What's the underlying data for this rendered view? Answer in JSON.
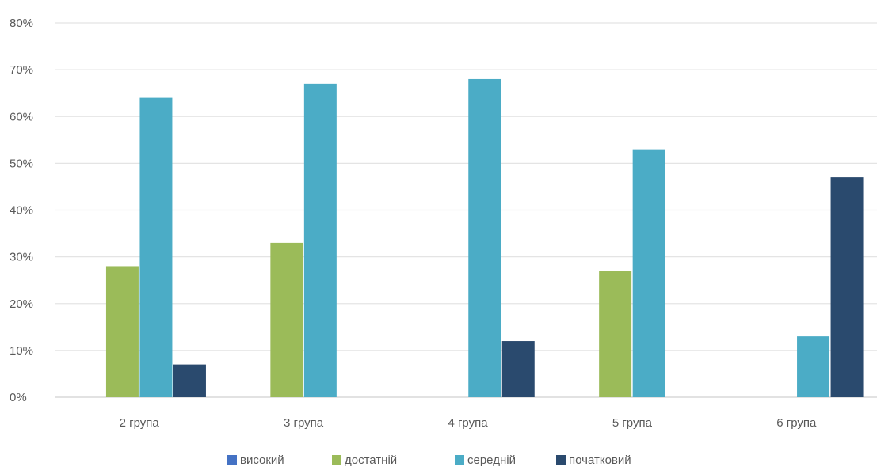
{
  "chart_data": {
    "type": "bar",
    "categories": [
      "2 група",
      "3 група",
      "4 група",
      "5 група",
      "6 група"
    ],
    "series": [
      {
        "name": "високий",
        "color": "#4472C4",
        "values": [
          0,
          0,
          0,
          0,
          0
        ]
      },
      {
        "name": "достатній",
        "color": "#9BBB59",
        "values": [
          28,
          33,
          0,
          27,
          0
        ]
      },
      {
        "name": "середній",
        "color": "#4BACC6",
        "values": [
          64,
          67,
          68,
          53,
          13
        ]
      },
      {
        "name": "початковий",
        "color": "#2A4A6E",
        "values": [
          7,
          0,
          12,
          0,
          47
        ]
      }
    ],
    "y_ticks": [
      "0%",
      "10%",
      "20%",
      "30%",
      "40%",
      "50%",
      "60%",
      "70%",
      "80%"
    ],
    "ylim": [
      0,
      80
    ],
    "grid": true,
    "legend_position": "bottom"
  }
}
